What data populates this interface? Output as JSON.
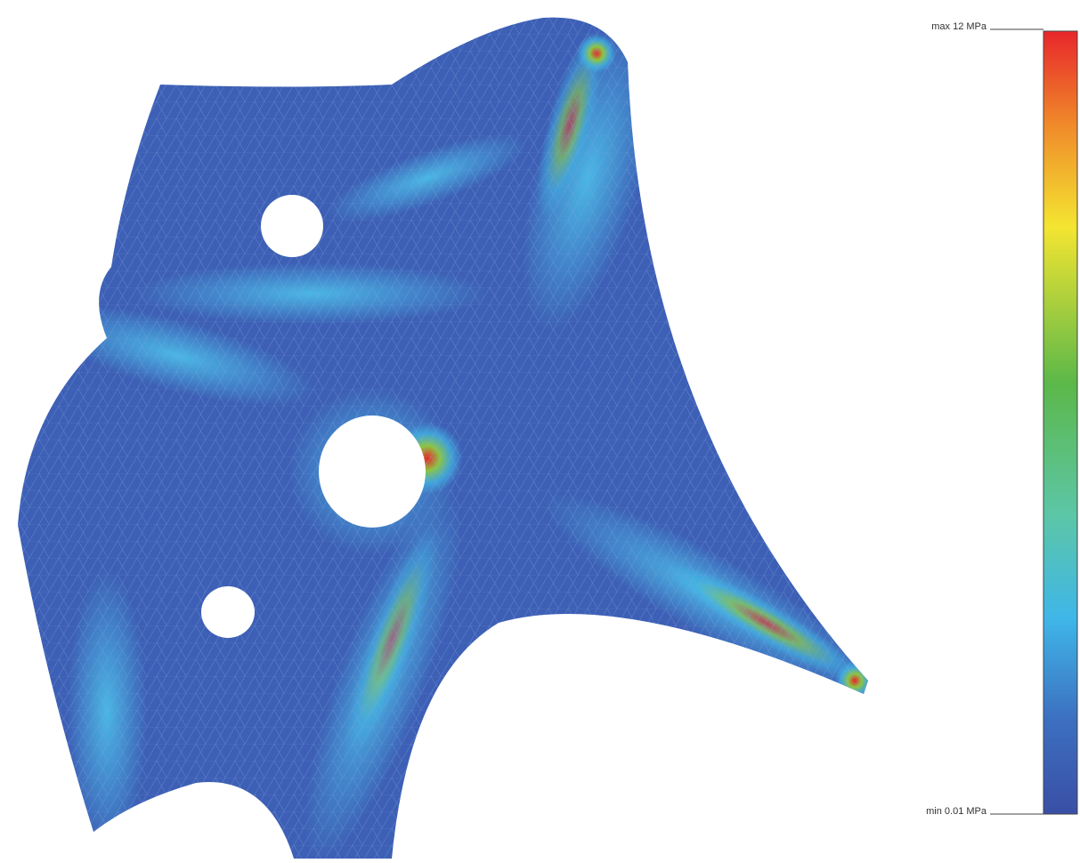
{
  "legend": {
    "max_label": "max 12 MPa",
    "min_label": "min 0.01 MPa"
  }
}
